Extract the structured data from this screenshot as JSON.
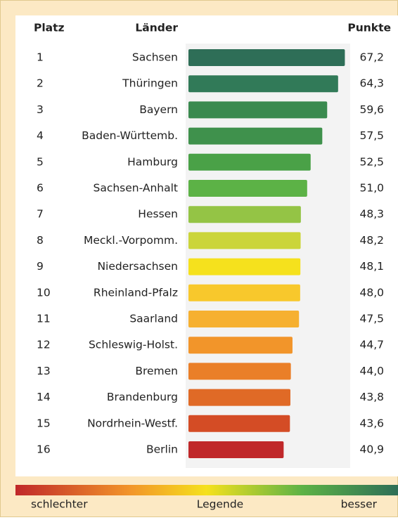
{
  "chart_data": {
    "type": "bar",
    "column_headers": [
      "Platz",
      "Länder",
      "Punkte"
    ],
    "ranks": [
      1,
      2,
      3,
      4,
      5,
      6,
      7,
      8,
      9,
      10,
      11,
      12,
      13,
      14,
      15,
      16
    ],
    "categories": [
      "Sachsen",
      "Thüringen",
      "Bayern",
      "Baden-Württemb.",
      "Hamburg",
      "Sachsen-Anhalt",
      "Hessen",
      "Meckl.-Vorpomm.",
      "Niedersachsen",
      "Rheinland-Pfalz",
      "Saarland",
      "Schleswig-Holst.",
      "Bremen",
      "Brandenburg",
      "Nordrhein-Westf.",
      "Berlin"
    ],
    "values": [
      67.2,
      64.3,
      59.6,
      57.5,
      52.5,
      51.0,
      48.3,
      48.2,
      48.1,
      48.0,
      47.5,
      44.7,
      44.0,
      43.8,
      43.6,
      40.9
    ],
    "value_labels": [
      "67,2",
      "64,3",
      "59,6",
      "57,5",
      "52,5",
      "51,0",
      "48,3",
      "48,2",
      "48,1",
      "48,0",
      "47,5",
      "44,7",
      "44,0",
      "43,8",
      "43,6",
      "40,9"
    ],
    "colors": [
      "#2e6e57",
      "#317a58",
      "#3a8a4f",
      "#3f914c",
      "#4aa147",
      "#5cb246",
      "#94c445",
      "#cbd53a",
      "#f5e11d",
      "#f8c82c",
      "#f6b030",
      "#f2952a",
      "#ea7f28",
      "#e06a26",
      "#d44c25",
      "#c0282a"
    ],
    "xlim": [
      0,
      70
    ],
    "legend": {
      "low": "schlechter",
      "mid": "Legende",
      "high": "besser"
    }
  }
}
